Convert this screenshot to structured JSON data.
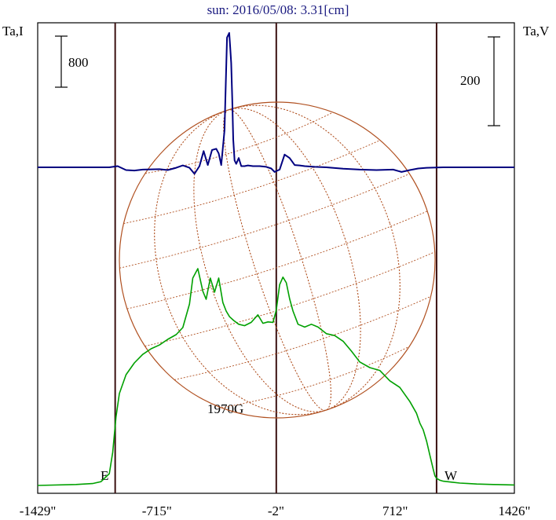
{
  "chart_data": {
    "type": "line",
    "title": "sun: 2016/05/08: 3.31[cm]",
    "ylabel_left": "Ta,I",
    "ylabel_right": "Ta,V",
    "scale_left_label": "800",
    "scale_right_label": "200",
    "x_ticks": [
      "-1429\"",
      "-715\"",
      "-2\"",
      "712\"",
      "1426\""
    ],
    "x_tick_values": [
      -1429,
      -715,
      -2,
      712,
      1426
    ],
    "xlim": [
      -1429,
      1426
    ],
    "limb_labels": {
      "east": "E",
      "west": "W"
    },
    "limb_positions": [
      -965,
      960
    ],
    "annotation": {
      "text": "1970G",
      "x": -270
    },
    "colors": {
      "intensity": "#00a000",
      "polarization": "#000080",
      "sun_disk": "#b05020",
      "axis_lines": "#3a1010"
    },
    "series": [
      {
        "id": "intensity",
        "axis": "left",
        "x": [
          -1429,
          -1200,
          -1100,
          -1050,
          -1000,
          -980,
          -960,
          -940,
          -900,
          -850,
          -800,
          -750,
          -700,
          -650,
          -600,
          -560,
          -520,
          -500,
          -470,
          -440,
          -420,
          -395,
          -370,
          -345,
          -320,
          -300,
          -280,
          -255,
          -225,
          -190,
          -150,
          -110,
          -80,
          -50,
          -20,
          0,
          20,
          40,
          60,
          80,
          100,
          130,
          170,
          210,
          250,
          300,
          350,
          400,
          450,
          500,
          560,
          620,
          680,
          740,
          800,
          840,
          860,
          880,
          900,
          920,
          940,
          950,
          960,
          980,
          1000,
          1050,
          1100,
          1150,
          1200,
          1300,
          1426
        ],
        "values": [
          0,
          20,
          40,
          80,
          250,
          700,
          1450,
          1950,
          2350,
          2600,
          2780,
          2900,
          2980,
          3100,
          3200,
          3350,
          3850,
          4400,
          4600,
          4120,
          3950,
          4400,
          4100,
          4400,
          3880,
          3700,
          3580,
          3500,
          3420,
          3390,
          3460,
          3620,
          3440,
          3470,
          3460,
          3720,
          4260,
          4420,
          4300,
          3960,
          3700,
          3420,
          3360,
          3420,
          3360,
          3220,
          3180,
          3060,
          2850,
          2620,
          2500,
          2440,
          2220,
          2080,
          1780,
          1530,
          1320,
          1180,
          940,
          640,
          340,
          205,
          150,
          110,
          90,
          70,
          50,
          40,
          30,
          20,
          10
        ]
      },
      {
        "id": "polarization",
        "axis": "right",
        "x": [
          -1429,
          -1300,
          -1100,
          -1000,
          -950,
          -900,
          -850,
          -800,
          -700,
          -650,
          -600,
          -560,
          -520,
          -490,
          -460,
          -435,
          -410,
          -385,
          -360,
          -345,
          -330,
          -310,
          -295,
          -282,
          -276,
          -270,
          -264,
          -258,
          -250,
          -240,
          -225,
          -210,
          -190,
          -170,
          -140,
          -100,
          -60,
          -30,
          -10,
          20,
          50,
          80,
          110,
          140,
          170,
          230,
          300,
          400,
          500,
          600,
          700,
          750,
          800,
          850,
          900,
          1000,
          1100,
          1200,
          1300,
          1426
        ],
        "values": [
          0,
          0,
          0,
          0,
          -5,
          12,
          14,
          10,
          8,
          12,
          2,
          -8,
          2,
          28,
          -5,
          -70,
          -10,
          -75,
          -80,
          -60,
          -10,
          -160,
          -560,
          -580,
          -520,
          -450,
          -300,
          -120,
          -30,
          -15,
          -40,
          -5,
          -5,
          -8,
          -5,
          -5,
          -2,
          5,
          20,
          10,
          -55,
          -40,
          -10,
          -8,
          -5,
          -2,
          0,
          6,
          10,
          12,
          10,
          20,
          12,
          5,
          2,
          0,
          0,
          0,
          0,
          0
        ]
      }
    ]
  }
}
